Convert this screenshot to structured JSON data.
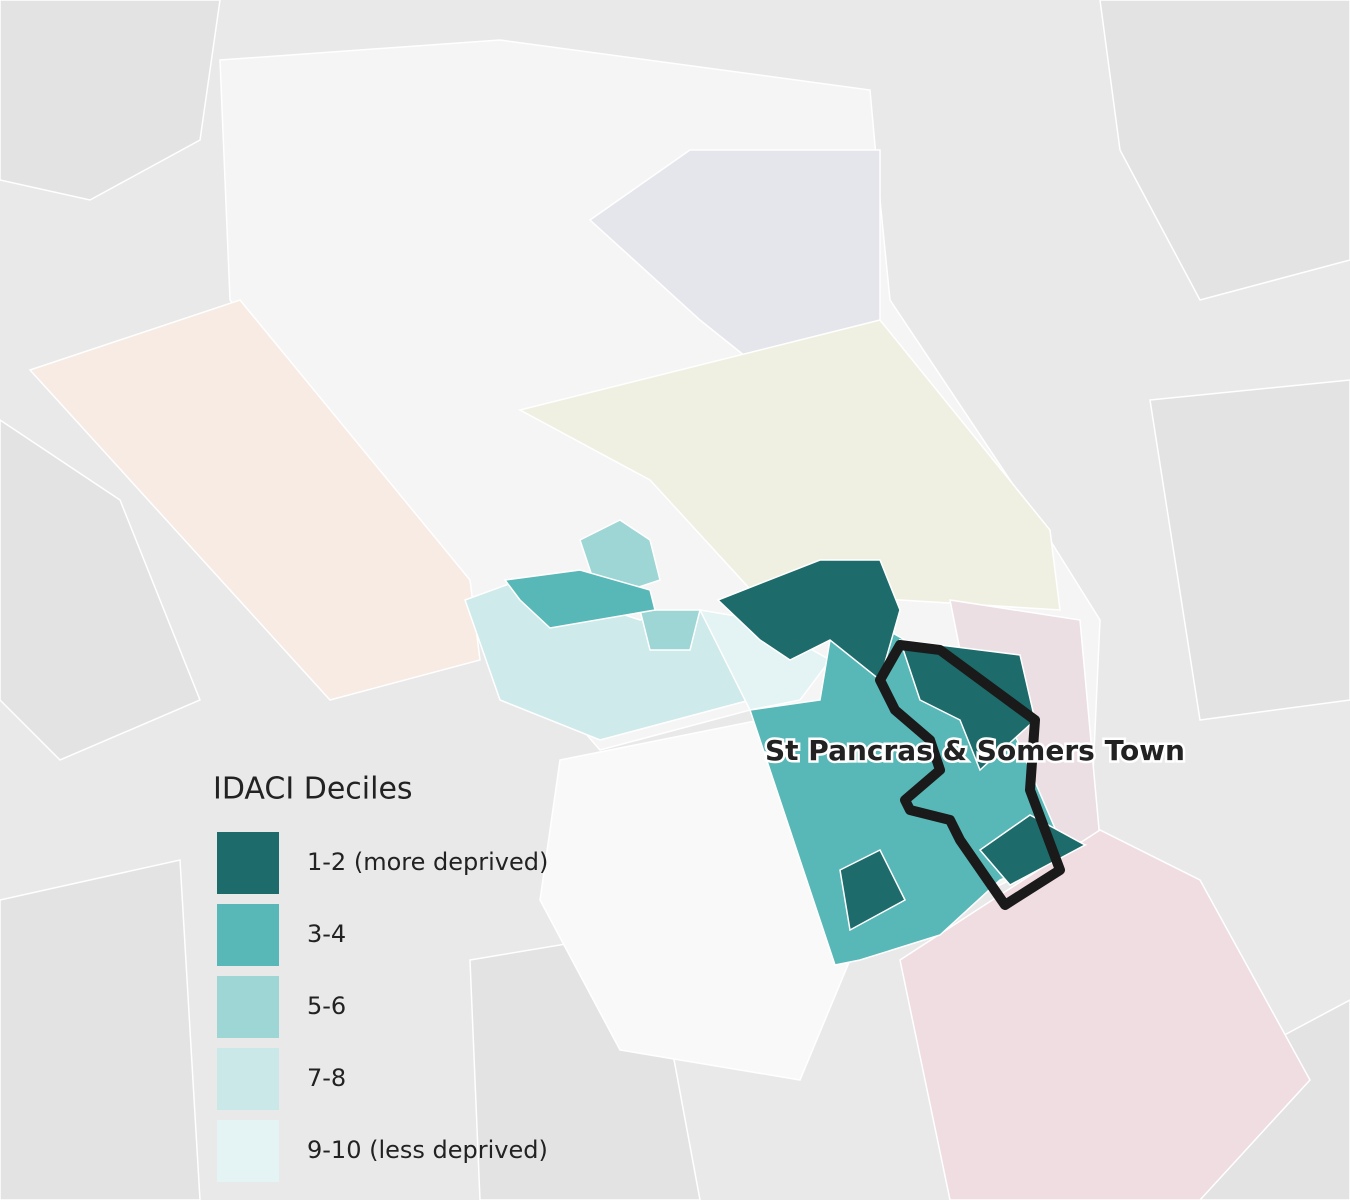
{
  "legend": {
    "title": "IDACI Deciles",
    "items": [
      {
        "label": "1-2 (more deprived)",
        "color": "#1e6b6b"
      },
      {
        "label": "3-4",
        "color": "#58b8b8"
      },
      {
        "label": "5-6",
        "color": "#9dd6d4"
      },
      {
        "label": "7-8",
        "color": "#c9e8e7"
      },
      {
        "label": "9-10 (less deprived)",
        "color": "#e4f3f3"
      }
    ]
  },
  "ward_label": "St Pancras & Somers Town"
}
